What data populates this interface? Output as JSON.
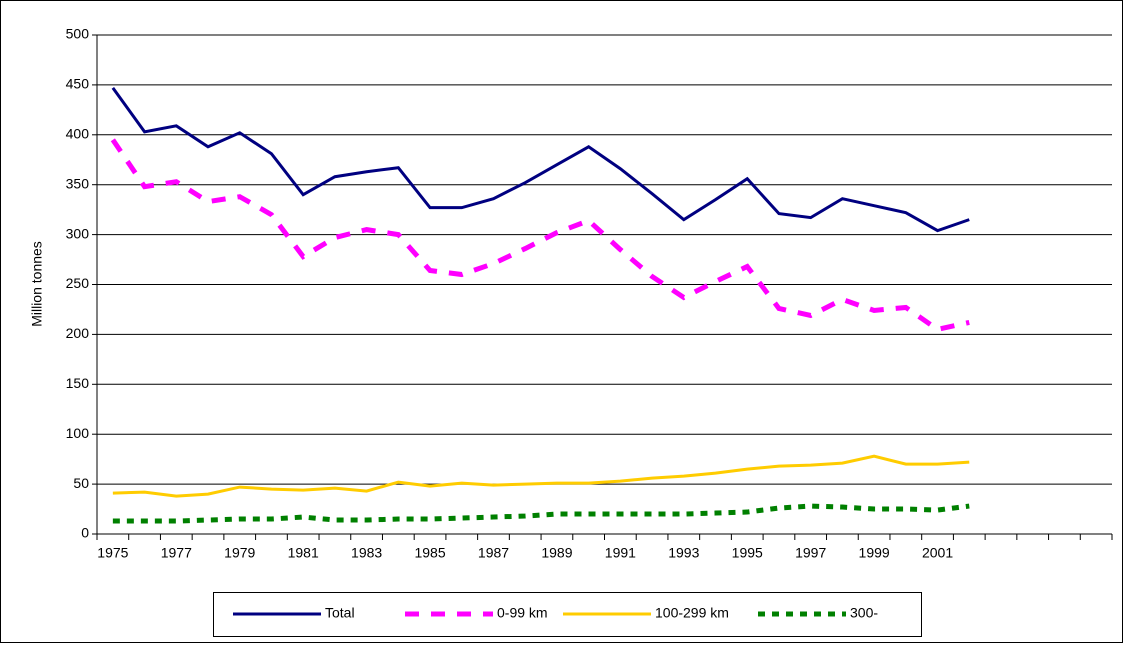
{
  "chart_data": {
    "type": "line",
    "ylabel": "Million tonnes",
    "categories": [
      "1975",
      null,
      "1977",
      null,
      "1979",
      null,
      "1981",
      null,
      "1983",
      null,
      "1985",
      null,
      "1987",
      null,
      "1989",
      null,
      "1991",
      null,
      "1993",
      null,
      "1995",
      null,
      "1997",
      null,
      "1999",
      null,
      "2001",
      null,
      null,
      null,
      null,
      null
    ],
    "series": [
      {
        "name": "Total",
        "color": "#000080",
        "dash": "none",
        "values": [
          447,
          403,
          409,
          388,
          402,
          381,
          340,
          358,
          363,
          367,
          327,
          327,
          336,
          352,
          370,
          388,
          366,
          341,
          315,
          335,
          356,
          321,
          317,
          336,
          329,
          322,
          304,
          315,
          null,
          null,
          null,
          null
        ]
      },
      {
        "name": "0-99 km",
        "color": "#ff00ff",
        "dash": "long",
        "values": [
          395,
          348,
          353,
          333,
          338,
          320,
          278,
          297,
          305,
          300,
          264,
          260,
          271,
          286,
          302,
          314,
          285,
          258,
          237,
          253,
          268,
          226,
          219,
          235,
          224,
          227,
          205,
          212,
          null,
          null,
          null,
          null
        ]
      },
      {
        "name": "100-299 km",
        "color": "#ffcc00",
        "dash": "none",
        "values": [
          41,
          42,
          38,
          40,
          47,
          45,
          44,
          46,
          43,
          52,
          48,
          51,
          49,
          50,
          51,
          51,
          53,
          56,
          58,
          61,
          65,
          68,
          69,
          71,
          78,
          70,
          70,
          72,
          null,
          null,
          null,
          null
        ]
      },
      {
        "name": "300-",
        "color": "#008000",
        "dash": "short",
        "values": [
          13,
          13,
          13,
          14,
          15,
          15,
          17,
          14,
          14,
          15,
          15,
          16,
          17,
          18,
          20,
          20,
          20,
          20,
          20,
          21,
          22,
          26,
          28,
          27,
          25,
          25,
          24,
          28,
          null,
          null,
          null,
          null
        ]
      }
    ],
    "ylim": [
      0,
      500
    ],
    "yticks": [
      0,
      50,
      100,
      150,
      200,
      250,
      300,
      350,
      400,
      450,
      500
    ],
    "grid": true
  }
}
